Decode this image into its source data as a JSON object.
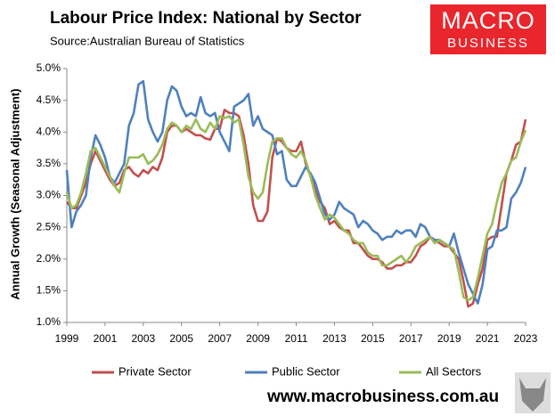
{
  "chart_data": {
    "type": "line",
    "title": "Labour Price Index: National by Sector",
    "subtitle": "Source:Australian Bureau of Statistics",
    "y_label": "Annual Growth (Seasonal Adjustment)",
    "x": [
      1999,
      1999.25,
      1999.5,
      1999.75,
      2000,
      2000.25,
      2000.5,
      2000.75,
      2001,
      2001.25,
      2001.5,
      2001.75,
      2002,
      2002.25,
      2002.5,
      2002.75,
      2003,
      2003.25,
      2003.5,
      2003.75,
      2004,
      2004.25,
      2004.5,
      2004.75,
      2005,
      2005.25,
      2005.5,
      2005.75,
      2006,
      2006.25,
      2006.5,
      2006.75,
      2007,
      2007.25,
      2007.5,
      2007.75,
      2008,
      2008.25,
      2008.5,
      2008.75,
      2009,
      2009.25,
      2009.5,
      2009.75,
      2010,
      2010.25,
      2010.5,
      2010.75,
      2011,
      2011.25,
      2011.5,
      2011.75,
      2012,
      2012.25,
      2012.5,
      2012.75,
      2013,
      2013.25,
      2013.5,
      2013.75,
      2014,
      2014.25,
      2014.5,
      2014.75,
      2015,
      2015.25,
      2015.5,
      2015.75,
      2016,
      2016.25,
      2016.5,
      2016.75,
      2017,
      2017.25,
      2017.5,
      2017.75,
      2018,
      2018.25,
      2018.5,
      2018.75,
      2019,
      2019.25,
      2019.5,
      2019.75,
      2020,
      2020.25,
      2020.5,
      2020.75,
      2021,
      2021.25,
      2021.5,
      2021.75,
      2022,
      2022.25,
      2022.5,
      2022.75,
      2023
    ],
    "series": [
      {
        "name": "Private Sector",
        "color": "#c0504d",
        "values": [
          2.9,
          2.8,
          2.8,
          3.0,
          3.2,
          3.5,
          3.7,
          3.55,
          3.4,
          3.25,
          3.15,
          3.2,
          3.4,
          3.45,
          3.35,
          3.3,
          3.4,
          3.35,
          3.45,
          3.4,
          3.6,
          4.0,
          4.1,
          4.1,
          4.0,
          4.05,
          4.0,
          3.95,
          3.95,
          3.9,
          3.88,
          4.05,
          4.05,
          4.35,
          4.3,
          4.3,
          4.25,
          3.95,
          3.5,
          2.85,
          2.6,
          2.6,
          2.75,
          3.6,
          3.9,
          3.85,
          3.75,
          3.7,
          3.7,
          3.85,
          3.5,
          3.3,
          3.1,
          2.9,
          2.8,
          2.55,
          2.6,
          2.5,
          2.45,
          2.45,
          2.25,
          2.25,
          2.15,
          2.05,
          2.0,
          2.0,
          1.95,
          1.85,
          1.85,
          1.9,
          1.9,
          1.95,
          1.95,
          2.05,
          2.2,
          2.25,
          2.35,
          2.3,
          2.25,
          2.2,
          2.2,
          2.1,
          2.0,
          1.65,
          1.25,
          1.3,
          1.6,
          1.85,
          2.3,
          2.35,
          2.35,
          2.85,
          3.35,
          3.55,
          3.8,
          3.85,
          4.2
        ]
      },
      {
        "name": "Public Sector",
        "color": "#4f81bd",
        "values": [
          3.4,
          2.5,
          2.75,
          2.85,
          3.0,
          3.6,
          3.95,
          3.8,
          3.6,
          3.3,
          3.2,
          3.35,
          3.5,
          4.1,
          4.3,
          4.75,
          4.8,
          4.2,
          4.0,
          3.85,
          4.0,
          4.5,
          4.72,
          4.65,
          4.4,
          4.25,
          4.3,
          4.25,
          4.55,
          4.3,
          4.25,
          4.3,
          4.0,
          3.85,
          3.7,
          4.4,
          4.45,
          4.5,
          4.6,
          4.1,
          4.25,
          4.05,
          4.0,
          3.95,
          3.65,
          3.7,
          3.25,
          3.15,
          3.15,
          3.3,
          3.45,
          3.35,
          3.2,
          2.95,
          2.7,
          2.62,
          2.7,
          2.9,
          2.8,
          2.75,
          2.7,
          2.5,
          2.6,
          2.55,
          2.45,
          2.4,
          2.3,
          2.35,
          2.35,
          2.45,
          2.4,
          2.45,
          2.45,
          2.35,
          2.55,
          2.5,
          2.35,
          2.3,
          2.3,
          2.25,
          2.2,
          2.4,
          2.1,
          1.85,
          1.6,
          1.45,
          1.3,
          1.6,
          2.15,
          2.2,
          2.45,
          2.45,
          2.5,
          2.95,
          3.05,
          3.2,
          3.45
        ]
      },
      {
        "name": "All Sectors",
        "color": "#9bbb59",
        "values": [
          3.05,
          2.8,
          2.85,
          3.05,
          3.35,
          3.7,
          3.75,
          3.6,
          3.45,
          3.3,
          3.15,
          3.05,
          3.35,
          3.6,
          3.6,
          3.6,
          3.65,
          3.5,
          3.55,
          3.65,
          3.8,
          4.05,
          4.15,
          4.1,
          4.0,
          4.1,
          4.05,
          4.2,
          4.05,
          4.0,
          4.15,
          4.05,
          4.25,
          4.22,
          4.25,
          4.15,
          4.2,
          3.8,
          3.3,
          3.05,
          2.95,
          3.05,
          3.5,
          3.85,
          3.9,
          3.9,
          3.75,
          3.65,
          3.6,
          3.7,
          3.55,
          3.3,
          3.0,
          2.8,
          2.62,
          2.7,
          2.65,
          2.55,
          2.45,
          2.4,
          2.3,
          2.25,
          2.25,
          2.1,
          2.05,
          2.05,
          1.9,
          1.9,
          1.95,
          2.0,
          2.05,
          1.95,
          2.05,
          2.2,
          2.25,
          2.3,
          2.35,
          2.25,
          2.3,
          2.25,
          2.2,
          2.15,
          1.8,
          1.4,
          1.35,
          1.4,
          1.7,
          2.05,
          2.4,
          2.55,
          2.9,
          3.2,
          3.35,
          3.55,
          3.6,
          3.85,
          4.03
        ]
      }
    ],
    "xlim": [
      1999,
      2023
    ],
    "xticks": [
      1999,
      2001,
      2003,
      2005,
      2007,
      2009,
      2011,
      2013,
      2015,
      2017,
      2019,
      2021,
      2023
    ],
    "ylim": [
      1.0,
      5.0
    ],
    "yticks": [
      {
        "value": 1.0,
        "label": "1.0%"
      },
      {
        "value": 1.5,
        "label": "1.5%"
      },
      {
        "value": 2.0,
        "label": "2.0%"
      },
      {
        "value": 2.5,
        "label": "2.5%"
      },
      {
        "value": 3.0,
        "label": "3.0%"
      },
      {
        "value": 3.5,
        "label": "3.5%"
      },
      {
        "value": 4.0,
        "label": "4.0%"
      },
      {
        "value": 4.5,
        "label": "4.5%"
      },
      {
        "value": 5.0,
        "label": "5.0%"
      }
    ],
    "grid": false,
    "legend": "bottom"
  },
  "logo": {
    "line1": "MACRO",
    "line2": "BUSINESS"
  },
  "footer": "www.macrobusiness.com.au"
}
